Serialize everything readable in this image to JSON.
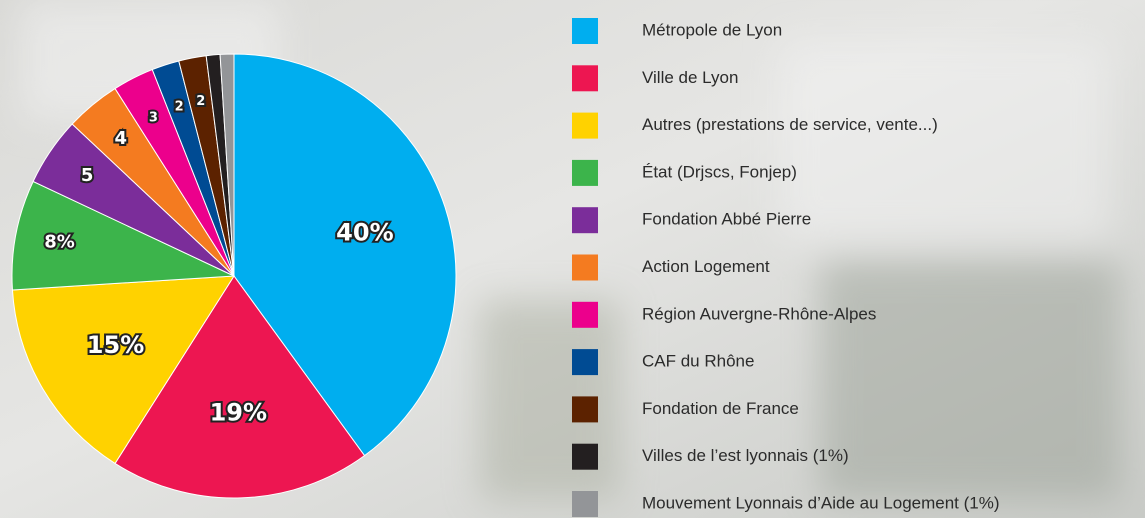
{
  "chart_data": {
    "type": "pie",
    "categories": [
      "Métropole de Lyon",
      "Ville de Lyon",
      "Autres (prestations de service, vente...)",
      "État (Drjscs, Fonjep)",
      "Fondation Abbé Pierre",
      "Action Logement",
      "Région Auvergne-Rhône-Alpes",
      "CAF du Rhône",
      "Fondation de France",
      "Villes de l’est lyonnais (1%)",
      "Mouvement Lyonnais d’Aide au Logement (1%)"
    ],
    "values": [
      40,
      19,
      15,
      8,
      5,
      4,
      3,
      2,
      2,
      1,
      1
    ],
    "value_labels": [
      "40%",
      "19%",
      "15%",
      "8%",
      "5",
      "4",
      "3",
      "2",
      "2",
      null,
      null
    ],
    "colors": [
      "#00aeef",
      "#ed1651",
      "#ffd200",
      "#3cb44b",
      "#7b2d9a",
      "#f47b20",
      "#ec008c",
      "#004b93",
      "#5c2200",
      "#231f20",
      "#939598"
    ]
  }
}
